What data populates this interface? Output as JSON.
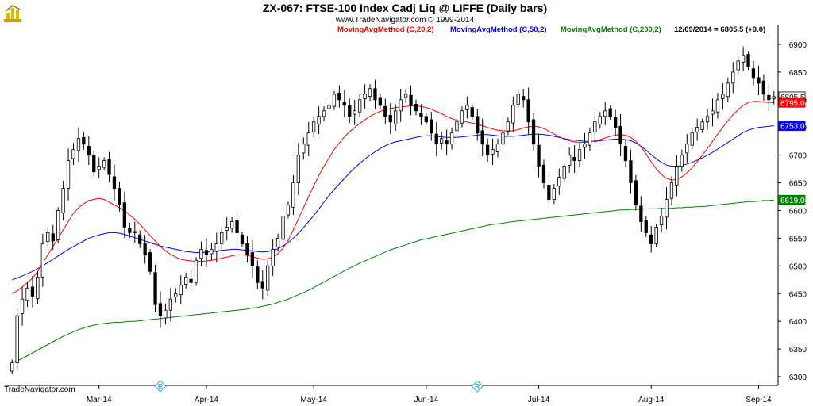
{
  "header": {
    "title": "ZX-067:  FTSE-100 Index Cadj Liq @ LIFFE  (Daily bars)",
    "copyright": "www.TradeNavigator.com © 1999-2014",
    "ma20_label": "MovingAvgMethod (C,20,2)",
    "ma50_label": "MovingAvgMethod (C,50,2)",
    "ma200_label": "MovingAvgMethod (C,200,2)",
    "last_quote": "12/09/2014 = 6805.5 (+9.0)"
  },
  "footer": {
    "brand": "TradeNavigator.com"
  },
  "colors": {
    "ma20": "#ff0000",
    "ma50": "#0000ff",
    "ma200": "#008000",
    "candle": "#000000"
  },
  "chart_data": {
    "type": "candlestick",
    "ylim": [
      6290,
      6920
    ],
    "yticks": [
      6300,
      6350,
      6400,
      6450,
      6500,
      6550,
      6600,
      6650,
      6700,
      6750,
      6800,
      6850,
      6900
    ],
    "x_month_labels": [
      {
        "label": "Mar-14",
        "bar": 17
      },
      {
        "label": "Apr-14",
        "bar": 38
      },
      {
        "label": "May-14",
        "bar": 59
      },
      {
        "label": "Jun-14",
        "bar": 81
      },
      {
        "label": "Jul-14",
        "bar": 103
      },
      {
        "label": "Aug-14",
        "bar": 125
      },
      {
        "label": "Sep-14",
        "bar": 146
      }
    ],
    "event_markers": [
      {
        "label": "R",
        "bar": 29
      },
      {
        "label": "R",
        "bar": 91
      }
    ],
    "price_tags": [
      {
        "value": 6805.5,
        "label": "6805.5",
        "series": "close"
      },
      {
        "value": 6795,
        "label": "6795.0",
        "series": "ma20"
      },
      {
        "value": 6753,
        "label": "6753.0",
        "series": "ma50"
      },
      {
        "value": 6619,
        "label": "6619.0",
        "series": "ma200"
      }
    ],
    "closes": [
      6325,
      6410,
      6440,
      6460,
      6445,
      6480,
      6540,
      6560,
      6545,
      6600,
      6640,
      6690,
      6710,
      6730,
      6720,
      6700,
      6670,
      6680,
      6690,
      6665,
      6640,
      6610,
      6570,
      6560,
      6560,
      6540,
      6520,
      6490,
      6430,
      6410,
      6420,
      6440,
      6450,
      6465,
      6480,
      6470,
      6510,
      6530,
      6520,
      6530,
      6540,
      6560,
      6570,
      6580,
      6560,
      6540,
      6520,
      6500,
      6470,
      6460,
      6500,
      6530,
      6550,
      6590,
      6610,
      6650,
      6700,
      6720,
      6740,
      6760,
      6770,
      6780,
      6790,
      6810,
      6800,
      6790,
      6770,
      6780,
      6800,
      6810,
      6820,
      6800,
      6790,
      6770,
      6760,
      6780,
      6800,
      6810,
      6790,
      6780,
      6770,
      6760,
      6740,
      6720,
      6730,
      6720,
      6740,
      6760,
      6780,
      6790,
      6770,
      6740,
      6720,
      6700,
      6710,
      6720,
      6740,
      6760,
      6790,
      6810,
      6800,
      6760,
      6720,
      6680,
      6650,
      6620,
      6640,
      6660,
      6680,
      6700,
      6690,
      6710,
      6720,
      6740,
      6760,
      6770,
      6780,
      6770,
      6750,
      6720,
      6690,
      6650,
      6610,
      6580,
      6560,
      6540,
      6570,
      6590,
      6620,
      6650,
      6680,
      6700,
      6720,
      6740,
      6750,
      6760,
      6770,
      6780,
      6800,
      6810,
      6830,
      6850,
      6870,
      6880,
      6860,
      6840,
      6830,
      6810,
      6800,
      6805.5
    ],
    "ma20": [
      6450,
      6455,
      6462,
      6470,
      6478,
      6490,
      6505,
      6520,
      6535,
      6550,
      6565,
      6580,
      6595,
      6605,
      6612,
      6618,
      6620,
      6622,
      6620,
      6615,
      6610,
      6605,
      6600,
      6592,
      6584,
      6575,
      6565,
      6555,
      6545,
      6535,
      6527,
      6521,
      6516,
      6512,
      6510,
      6509,
      6508,
      6508,
      6509,
      6510,
      6512,
      6514,
      6516,
      6518,
      6520,
      6520,
      6519,
      6517,
      6514,
      6512,
      6513,
      6516,
      6522,
      6532,
      6546,
      6565,
      6585,
      6605,
      6625,
      6645,
      6663,
      6680,
      6695,
      6710,
      6722,
      6733,
      6742,
      6750,
      6757,
      6764,
      6770,
      6775,
      6779,
      6782,
      6784,
      6786,
      6787,
      6788,
      6789,
      6789,
      6788,
      6786,
      6783,
      6779,
      6775,
      6770,
      6766,
      6763,
      6761,
      6760,
      6758,
      6756,
      6753,
      6750,
      6747,
      6745,
      6744,
      6743,
      6744,
      6746,
      6749,
      6751,
      6752,
      6751,
      6748,
      6743,
      6738,
      6733,
      6729,
      6726,
      6724,
      6723,
      6723,
      6724,
      6726,
      6728,
      6731,
      6734,
      6736,
      6737,
      6736,
      6732,
      6725,
      6715,
      6702,
      6688,
      6675,
      6665,
      6658,
      6655,
      6656,
      6661,
      6668,
      6677,
      6688,
      6700,
      6712,
      6725,
      6738,
      6750,
      6762,
      6773,
      6782,
      6790,
      6795,
      6797,
      6797,
      6796,
      6795,
      6795
    ],
    "ma50": [
      6475,
      6478,
      6482,
      6486,
      6490,
      6495,
      6500,
      6506,
      6512,
      6518,
      6524,
      6530,
      6535,
      6540,
      6545,
      6550,
      6553,
      6556,
      6558,
      6560,
      6560,
      6559,
      6557,
      6554,
      6551,
      6548,
      6545,
      6542,
      6539,
      6536,
      6534,
      6532,
      6530,
      6528,
      6526,
      6525,
      6524,
      6524,
      6525,
      6526,
      6527,
      6528,
      6529,
      6530,
      6530,
      6529,
      6528,
      6527,
      6526,
      6525,
      6526,
      6528,
      6531,
      6536,
      6542,
      6550,
      6559,
      6569,
      6580,
      6591,
      6603,
      6615,
      6627,
      6638,
      6648,
      6658,
      6668,
      6677,
      6685,
      6693,
      6700,
      6706,
      6712,
      6717,
      6721,
      6724,
      6726,
      6728,
      6730,
      6732,
      6734,
      6735,
      6735,
      6734,
      6733,
      6732,
      6732,
      6732,
      6733,
      6734,
      6735,
      6736,
      6737,
      6737,
      6736,
      6735,
      6734,
      6734,
      6734,
      6735,
      6736,
      6737,
      6738,
      6738,
      6737,
      6736,
      6734,
      6732,
      6730,
      6728,
      6727,
      6726,
      6725,
      6725,
      6725,
      6726,
      6727,
      6728,
      6729,
      6729,
      6728,
      6726,
      6722,
      6716,
      6709,
      6701,
      6693,
      6687,
      6682,
      6680,
      6680,
      6681,
      6684,
      6687,
      6691,
      6695,
      6700,
      6705,
      6711,
      6717,
      6723,
      6729,
      6735,
      6741,
      6745,
      6748,
      6750,
      6751,
      6752,
      6753
    ],
    "ma200": [
      6325,
      6329,
      6333,
      6338,
      6343,
      6348,
      6353,
      6358,
      6363,
      6368,
      6373,
      6377,
      6381,
      6385,
      6388,
      6391,
      6393,
      6395,
      6396,
      6397,
      6398,
      6398,
      6399,
      6400,
      6400,
      6401,
      6402,
      6403,
      6404,
      6405,
      6406,
      6407,
      6408,
      6409,
      6410,
      6411,
      6412,
      6413,
      6414,
      6415,
      6416,
      6417,
      6418,
      6419,
      6420,
      6421,
      6422,
      6424,
      6425,
      6427,
      6429,
      6431,
      6434,
      6437,
      6440,
      6444,
      6448,
      6452,
      6456,
      6461,
      6466,
      6471,
      6476,
      6481,
      6486,
      6491,
      6496,
      6500,
      6505,
      6509,
      6513,
      6517,
      6521,
      6525,
      6529,
      6532,
      6535,
      6538,
      6541,
      6544,
      6547,
      6549,
      6551,
      6553,
      6555,
      6557,
      6559,
      6561,
      6563,
      6565,
      6567,
      6569,
      6571,
      6573,
      6575,
      6576,
      6577,
      6579,
      6580,
      6581,
      6582,
      6583,
      6584,
      6585,
      6586,
      6587,
      6588,
      6589,
      6590,
      6591,
      6592,
      6593,
      6594,
      6595,
      6596,
      6597,
      6598,
      6599,
      6600,
      6601,
      6601,
      6602,
      6602,
      6602,
      6603,
      6603,
      6603,
      6604,
      6604,
      6604,
      6605,
      6605,
      6606,
      6606,
      6607,
      6607,
      6608,
      6609,
      6610,
      6611,
      6612,
      6613,
      6614,
      6615,
      6616,
      6616,
      6617,
      6618,
      6618,
      6619
    ]
  }
}
